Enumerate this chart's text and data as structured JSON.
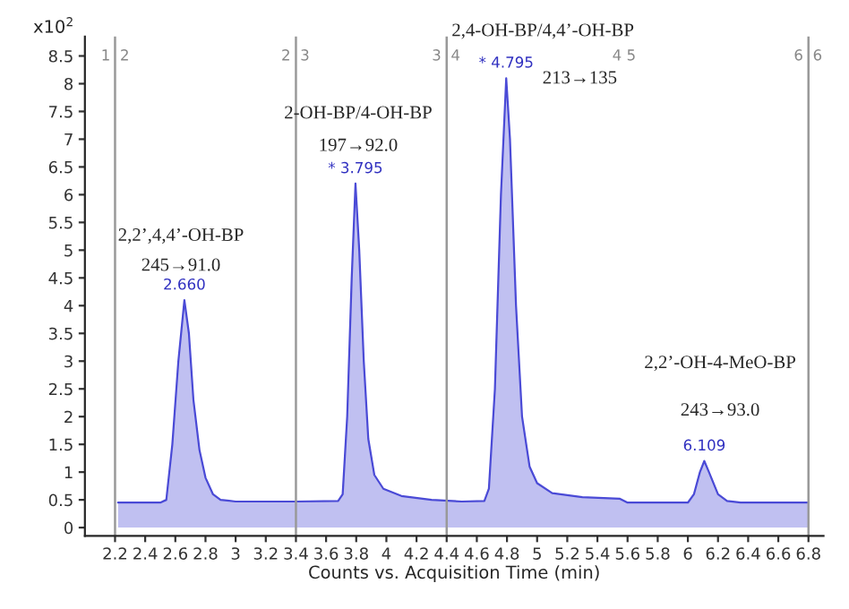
{
  "chart_data": {
    "type": "area",
    "xlabel": "Counts vs. Acquisition Time (min)",
    "ylabel": "x10$^{2}$",
    "xlim": [
      2.0,
      6.9
    ],
    "ylim": [
      -0.15,
      8.85
    ],
    "xticks": [
      2.2,
      2.4,
      2.6,
      2.8,
      3,
      3.2,
      3.4,
      3.6,
      3.8,
      4,
      4.2,
      4.4,
      4.6,
      4.8,
      5,
      5.2,
      5.4,
      5.6,
      5.8,
      6,
      6.2,
      6.4,
      6.6,
      6.8
    ],
    "yticks": [
      0,
      0.5,
      1,
      1.5,
      2,
      2.5,
      3,
      3.5,
      4,
      4.5,
      5,
      5.5,
      6,
      6.5,
      7,
      7.5,
      8,
      8.5
    ],
    "grid": false,
    "legend": false,
    "x": [
      2.22,
      2.5,
      2.54,
      2.58,
      2.62,
      2.66,
      2.69,
      2.72,
      2.76,
      2.8,
      2.85,
      2.9,
      3.0,
      3.4,
      3.68,
      3.71,
      3.74,
      3.77,
      3.795,
      3.82,
      3.85,
      3.88,
      3.92,
      3.98,
      4.1,
      4.3,
      4.5,
      4.65,
      4.68,
      4.72,
      4.76,
      4.795,
      4.82,
      4.86,
      4.9,
      4.95,
      5.0,
      5.1,
      5.3,
      5.55,
      5.6,
      6.0,
      6.04,
      6.08,
      6.109,
      6.14,
      6.2,
      6.26,
      6.35,
      6.8
    ],
    "series": [
      {
        "color": "#4a4ad6",
        "values": [
          0.45,
          0.45,
          0.5,
          1.5,
          3.0,
          4.1,
          3.5,
          2.3,
          1.4,
          0.9,
          0.6,
          0.5,
          0.47,
          0.47,
          0.48,
          0.6,
          2.0,
          4.5,
          6.2,
          5.0,
          3.0,
          1.6,
          0.95,
          0.7,
          0.57,
          0.5,
          0.47,
          0.48,
          0.7,
          2.5,
          6.0,
          8.1,
          7.0,
          4.0,
          2.0,
          1.1,
          0.8,
          0.62,
          0.55,
          0.52,
          0.45,
          0.45,
          0.6,
          1.0,
          1.2,
          1.0,
          0.6,
          0.48,
          0.45,
          0.45
        ]
      }
    ],
    "ref_lines": [
      {
        "axis": "x",
        "value": 2.2,
        "color": "#999999"
      },
      {
        "axis": "x",
        "value": 3.4,
        "color": "#999999"
      },
      {
        "axis": "x",
        "value": 4.4,
        "color": "#999999"
      },
      {
        "axis": "x",
        "value": 6.8,
        "color": "#999999"
      }
    ],
    "annotations": [
      {
        "text": "2.660",
        "x": 2.66,
        "y": 4.1
      },
      {
        "text": "* 3.795",
        "x": 3.795,
        "y": 6.2
      },
      {
        "text": "* 4.795",
        "x": 4.795,
        "y": 8.1
      },
      {
        "text": "6.109",
        "x": 6.109,
        "y": 1.2
      },
      "2,2’,4,4’-OH-BP",
      "245→91.0",
      "2-OH-BP/4-OH-BP",
      "197→92.0",
      "2,4-OH-BP/4,4’-OH-BP",
      "213→135",
      "2,2’-OH-4-MeO-BP",
      "243→93.0",
      "1  2",
      "2  3",
      "3  4",
      "4 5",
      "6  6"
    ]
  }
}
